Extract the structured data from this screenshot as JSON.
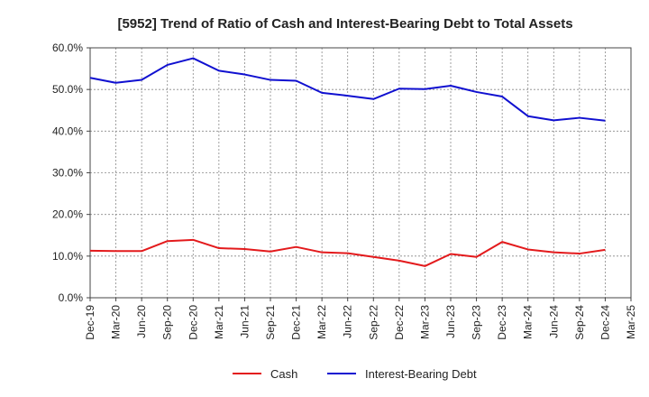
{
  "chart_data": {
    "type": "line",
    "title": "[5952]  Trend of Ratio of Cash and Interest-Bearing Debt to Total Assets",
    "xlabel": "",
    "ylabel": "",
    "ylim": [
      0,
      60
    ],
    "yticks": [
      "0.0%",
      "10.0%",
      "20.0%",
      "30.0%",
      "40.0%",
      "50.0%",
      "60.0%"
    ],
    "ytick_values": [
      0,
      10,
      20,
      30,
      40,
      50,
      60
    ],
    "x_tick_labels": [
      "Dec-19",
      "Mar-20",
      "Jun-20",
      "Sep-20",
      "Dec-20",
      "Mar-21",
      "Jun-21",
      "Sep-21",
      "Dec-21",
      "Mar-22",
      "Jun-22",
      "Sep-22",
      "Dec-22",
      "Mar-23",
      "Jun-23",
      "Sep-23",
      "Dec-23",
      "Mar-24",
      "Jun-24",
      "Sep-24",
      "Dec-24",
      "Mar-25"
    ],
    "categories": [
      "Dec-19",
      "Mar-20",
      "Jun-20",
      "Sep-20",
      "Dec-20",
      "Mar-21",
      "Jun-21",
      "Sep-21",
      "Dec-21",
      "Mar-22",
      "Jun-22",
      "Sep-22",
      "Dec-22",
      "Mar-23",
      "Jun-23",
      "Sep-23",
      "Dec-23",
      "Mar-24",
      "Jun-24",
      "Sep-24",
      "Dec-24"
    ],
    "grid": true,
    "legend_position": "bottom",
    "series": [
      {
        "name": "Cash",
        "color": "#e31a1c",
        "values": [
          11.3,
          11.2,
          11.2,
          13.6,
          13.9,
          11.9,
          11.7,
          11.1,
          12.2,
          10.9,
          10.7,
          9.8,
          8.9,
          7.6,
          10.5,
          9.8,
          13.4,
          11.6,
          10.9,
          10.6,
          11.5
        ]
      },
      {
        "name": "Interest-Bearing Debt",
        "color": "#1010d0",
        "values": [
          52.8,
          51.6,
          52.3,
          55.9,
          57.5,
          54.5,
          53.6,
          52.3,
          52.1,
          49.2,
          48.5,
          47.7,
          50.2,
          50.1,
          50.9,
          49.4,
          48.3,
          43.6,
          42.6,
          43.2,
          42.5
        ]
      }
    ]
  }
}
